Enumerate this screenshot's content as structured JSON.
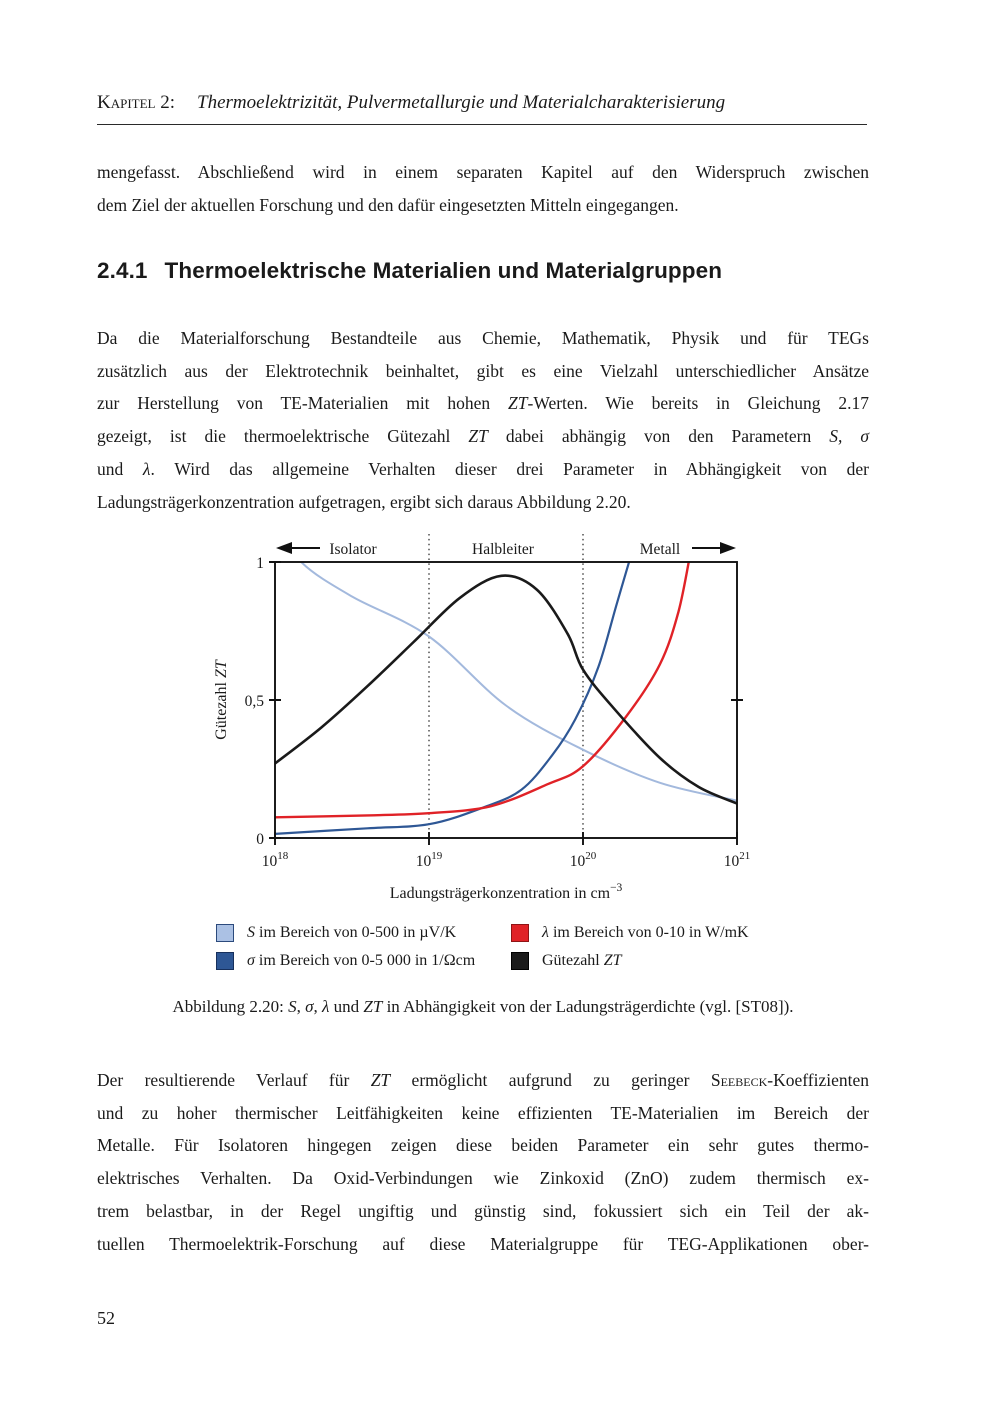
{
  "page": {
    "number": "52",
    "background": "#ffffff"
  },
  "header": {
    "chapter_label": "Kapitel 2:",
    "chapter_title": "Thermoelektrizität, Pulvermetallurgie und Materialcharakterisierung"
  },
  "paragraph_1": {
    "lines": [
      [
        {
          "t": "mengefasst. Abschließend wird in einem separaten Kapitel auf den Widerspruch zwischen",
          "s": "r"
        }
      ],
      [
        {
          "t": "dem Ziel der aktuellen Forschung und den dafür eingesetzten Mitteln eingegangen.",
          "s": "r"
        }
      ]
    ]
  },
  "section_heading": {
    "number": "2.4.1",
    "title": "Thermoelektrische Materialien und Materialgruppen"
  },
  "paragraph_2": {
    "lines": [
      [
        {
          "t": "Da die Materialforschung Bestandteile aus Chemie, Mathematik, Physik und für TEGs",
          "s": "r"
        }
      ],
      [
        {
          "t": "zusätzlich aus der Elektrotechnik beinhaltet, gibt es eine Vielzahl unterschiedlicher Ansätze",
          "s": "r"
        }
      ],
      [
        {
          "t": "zur Herstellung von TE-Materialien mit hohen ",
          "s": "r"
        },
        {
          "t": "ZT",
          "s": "i"
        },
        {
          "t": "-Werten. Wie bereits in Gleichung 2.17",
          "s": "r"
        }
      ],
      [
        {
          "t": "gezeigt, ist die thermoelektrische Gütezahl ",
          "s": "r"
        },
        {
          "t": "ZT",
          "s": "i"
        },
        {
          "t": " dabei abhängig von den Parametern ",
          "s": "r"
        },
        {
          "t": "S, σ",
          "s": "i"
        }
      ],
      [
        {
          "t": "und ",
          "s": "r"
        },
        {
          "t": "λ",
          "s": "i"
        },
        {
          "t": ". Wird das allgemeine Verhalten dieser drei Parameter in Abhängigkeit von der",
          "s": "r"
        }
      ],
      [
        {
          "t": "Ladungsträgerkonzentration aufgetragen, ergibt sich daraus Abbildung 2.20.",
          "s": "r"
        }
      ]
    ]
  },
  "figure": {
    "chart": {
      "regions": [
        "Isolator",
        "Halbleiter",
        "Metall"
      ],
      "y_ticks": [
        {
          "label": "1"
        },
        {
          "label": "0,5"
        },
        {
          "label": "0"
        }
      ],
      "x_ticks": [
        {
          "base": "10",
          "exp": "18"
        },
        {
          "base": "10",
          "exp": "19"
        },
        {
          "base": "10",
          "exp": "20"
        },
        {
          "base": "10",
          "exp": "21"
        }
      ],
      "ylabel": {
        "text": "Gütezahl ",
        "math": "ZT"
      },
      "xlabel": {
        "text": "Ladungsträgerkonzentration in cm",
        "exp": "−3"
      }
    },
    "legend": {
      "items": [
        {
          "id": "S",
          "color": "#abc1e4",
          "border": "#2c4a7c",
          "segments": [
            {
              "t": "S",
              "s": "i"
            },
            {
              "t": " im Bereich von 0-500 in µV/K",
              "s": "r"
            }
          ]
        },
        {
          "id": "sigma",
          "color": "#2e5795",
          "border": "#17305c",
          "segments": [
            {
              "t": "σ",
              "s": "i"
            },
            {
              "t": " im Bereich von 0-5 000 in 1/Ωcm",
              "s": "r"
            }
          ]
        },
        {
          "id": "lambda",
          "color": "#e02227",
          "border": "#8f1416",
          "segments": [
            {
              "t": "λ",
              "s": "i"
            },
            {
              "t": " im Bereich von 0-10 in W/mK",
              "s": "r"
            }
          ]
        },
        {
          "id": "ZT",
          "color": "#1a1a1a",
          "border": "#000000",
          "segments": [
            {
              "t": "Gütezahl ",
              "s": "r"
            },
            {
              "t": "ZT",
              "s": "i"
            }
          ]
        }
      ]
    },
    "caption": {
      "segments": [
        {
          "t": "Abbildung 2.20: ",
          "s": "r"
        },
        {
          "t": "S",
          "s": "i"
        },
        {
          "t": ", ",
          "s": "r"
        },
        {
          "t": "σ",
          "s": "i"
        },
        {
          "t": ", ",
          "s": "r"
        },
        {
          "t": "λ",
          "s": "i"
        },
        {
          "t": " und ",
          "s": "r"
        },
        {
          "t": "ZT",
          "s": "i"
        },
        {
          "t": " in Abhängigkeit von der Ladungsträgerdichte (vgl. [ST08]).",
          "s": "r"
        }
      ]
    }
  },
  "paragraph_3": {
    "lines": [
      [
        {
          "t": "Der resultierende Verlauf für ",
          "s": "r"
        },
        {
          "t": "ZT",
          "s": "i"
        },
        {
          "t": " ermöglicht aufgrund zu geringer ",
          "s": "r"
        },
        {
          "t": "Seebeck",
          "s": "sc"
        },
        {
          "t": "-Koeffizienten",
          "s": "r"
        }
      ],
      [
        {
          "t": "und zu hoher thermischer Leitfähigkeiten keine effizienten TE-Materialien im Bereich der",
          "s": "r"
        }
      ],
      [
        {
          "t": "Metalle. Für Isolatoren hingegen zeigen diese beiden Parameter ein sehr gutes thermo-",
          "s": "r"
        }
      ],
      [
        {
          "t": "elektrisches Verhalten. Da Oxid-Verbindungen wie Zinkoxid (ZnO) zudem thermisch ex-",
          "s": "r"
        }
      ],
      [
        {
          "t": "trem belastbar, in der Regel ungiftig und günstig sind, fokussiert sich ein Teil der ak-",
          "s": "r"
        }
      ],
      [
        {
          "t": "tuellen Thermoelektrik-Forschung auf diese Materialgruppe für TEG-Applikationen ober-",
          "s": "r"
        }
      ]
    ]
  },
  "chart_data": {
    "type": "line",
    "title": "",
    "xlabel": "Ladungsträgerkonzentration in cm⁻³",
    "ylabel": "Gütezahl ZT",
    "x_scale": "log",
    "xlim_log10": [
      18,
      21
    ],
    "ylim": [
      0,
      1
    ],
    "x_tick_labels": [
      "10^18",
      "10^19",
      "10^20",
      "10^21"
    ],
    "y_tick_labels": [
      "0",
      "0,5",
      "1"
    ],
    "grid": false,
    "legend_position": "below",
    "region_labels": [
      {
        "label": "Isolator",
        "x_log10_range": [
          18,
          19
        ],
        "arrow": "left"
      },
      {
        "label": "Halbleiter",
        "x_log10_range": [
          19,
          20
        ]
      },
      {
        "label": "Metall",
        "x_log10_range": [
          20,
          21
        ],
        "arrow": "right"
      }
    ],
    "boundary_lines_x_log10": [
      19,
      20
    ],
    "series": [
      {
        "id": "S",
        "name": "S im Bereich von 0-500 in µV/K",
        "color": "#a3b9dd",
        "points": [
          [
            18.02,
            1.14
          ],
          [
            18.17,
            1.0
          ],
          [
            18.5,
            0.875
          ],
          [
            19,
            0.73
          ],
          [
            19.5,
            0.48
          ],
          [
            20,
            0.32
          ],
          [
            20.5,
            0.2
          ],
          [
            21,
            0.135
          ]
        ]
      },
      {
        "id": "sigma",
        "name": "σ im Bereich von 0-5 000 in 1/Ωcm",
        "color": "#2e5795",
        "points": [
          [
            18,
            0.015
          ],
          [
            18.6,
            0.035
          ],
          [
            19,
            0.05
          ],
          [
            19.35,
            0.11
          ],
          [
            19.6,
            0.175
          ],
          [
            19.8,
            0.3
          ],
          [
            19.95,
            0.43
          ],
          [
            20.1,
            0.62
          ],
          [
            20.22,
            0.85
          ],
          [
            20.32,
            1.04
          ]
        ]
      },
      {
        "id": "lambda",
        "name": "λ im Bereich von 0-10 in W/mK",
        "color": "#e02227",
        "points": [
          [
            18,
            0.075
          ],
          [
            18.6,
            0.082
          ],
          [
            19,
            0.09
          ],
          [
            19.4,
            0.115
          ],
          [
            19.77,
            0.195
          ],
          [
            20,
            0.26
          ],
          [
            20.28,
            0.44
          ],
          [
            20.5,
            0.63
          ],
          [
            20.62,
            0.82
          ],
          [
            20.7,
            1.04
          ]
        ]
      },
      {
        "id": "ZT",
        "name": "Gütezahl ZT",
        "color": "#1a1a1a",
        "points": [
          [
            18,
            0.27
          ],
          [
            18.3,
            0.4
          ],
          [
            18.6,
            0.55
          ],
          [
            18.9,
            0.71
          ],
          [
            19.2,
            0.87
          ],
          [
            19.47,
            0.95
          ],
          [
            19.7,
            0.9
          ],
          [
            19.9,
            0.74
          ],
          [
            20,
            0.61
          ],
          [
            20.2,
            0.47
          ],
          [
            20.5,
            0.29
          ],
          [
            20.75,
            0.185
          ],
          [
            21,
            0.125
          ]
        ]
      }
    ]
  }
}
